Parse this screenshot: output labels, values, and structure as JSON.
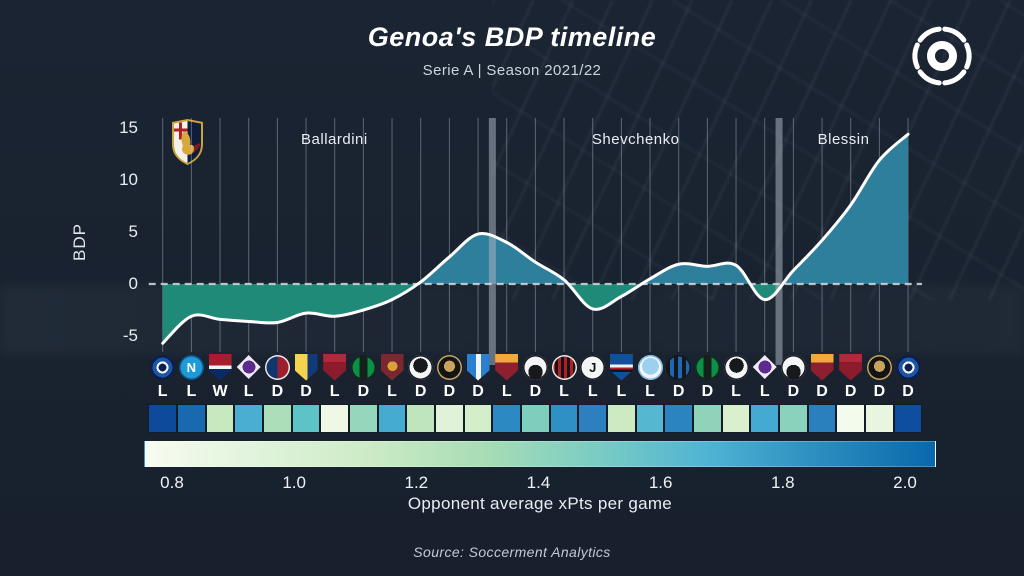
{
  "header": {
    "title": "Genoa's BDP timeline",
    "subtitle": "Serie A | Season 2021/22"
  },
  "footer": {
    "source": "Source: Soccerment Analytics"
  },
  "icons": {
    "soccerment_logo": "soccerment-ball-logo",
    "genoa_crest": "genoa-club-crest"
  },
  "chart_data": {
    "type": "area",
    "title": "Genoa's BDP timeline",
    "subtitle": "Serie A | Season 2021/22",
    "ylabel": "BDP",
    "yticks": [
      15,
      10,
      5,
      0,
      -5
    ],
    "ylim": [
      -6.5,
      16
    ],
    "zero_baseline": 0,
    "grid": "vertical-per-match",
    "matches": [
      {
        "opponent": "Inter",
        "team": "inter",
        "result": "L",
        "bdp": -5.7,
        "xpts_color": "#0d4a9c"
      },
      {
        "opponent": "Napoli",
        "team": "napoli",
        "result": "L",
        "bdp": -3.1,
        "xpts_color": "#1969b0"
      },
      {
        "opponent": "Cagliari",
        "team": "cagliari",
        "result": "W",
        "bdp": -3.4,
        "xpts_color": "#c7e9c0"
      },
      {
        "opponent": "Fiorentina",
        "team": "fiorentina",
        "result": "L",
        "bdp": -3.6,
        "xpts_color": "#4aadd2"
      },
      {
        "opponent": "Bologna",
        "team": "bologna",
        "result": "D",
        "bdp": -3.7,
        "xpts_color": "#aadfb9"
      },
      {
        "opponent": "Verona",
        "team": "verona",
        "result": "D",
        "bdp": -2.8,
        "xpts_color": "#5ec3c6"
      },
      {
        "opponent": "Salernitana",
        "team": "salernitana",
        "result": "L",
        "bdp": -3.1,
        "xpts_color": "#eef8e4"
      },
      {
        "opponent": "Sassuolo",
        "team": "sassuolo",
        "result": "D",
        "bdp": -2.5,
        "xpts_color": "#95d6bd"
      },
      {
        "opponent": "Torino",
        "team": "torino",
        "result": "L",
        "bdp": -1.5,
        "xpts_color": "#46abd1"
      },
      {
        "opponent": "Spezia",
        "team": "spezia",
        "result": "D",
        "bdp": 0.2,
        "xpts_color": "#bfe5bd"
      },
      {
        "opponent": "Venezia",
        "team": "venezia",
        "result": "D",
        "bdp": 2.6,
        "xpts_color": "#e0f3d8"
      },
      {
        "opponent": "Empoli",
        "team": "empoli",
        "result": "D",
        "bdp": 4.8,
        "xpts_color": "#d4eeca"
      },
      {
        "opponent": "Roma",
        "team": "roma",
        "result": "L",
        "bdp": 4.0,
        "xpts_color": "#2d89c2"
      },
      {
        "opponent": "Udinese",
        "team": "udinese",
        "result": "D",
        "bdp": 2.1,
        "xpts_color": "#7fcdbb"
      },
      {
        "opponent": "Milan",
        "team": "milan",
        "result": "L",
        "bdp": 0.4,
        "xpts_color": "#2f90c5"
      },
      {
        "opponent": "Juventus",
        "team": "juventus",
        "result": "L",
        "bdp": -2.4,
        "xpts_color": "#2b80bd"
      },
      {
        "opponent": "Sampdoria",
        "team": "sampdoria",
        "result": "L",
        "bdp": -1.2,
        "xpts_color": "#cdebc3"
      },
      {
        "opponent": "Lazio",
        "team": "lazio",
        "result": "L",
        "bdp": 0.5,
        "xpts_color": "#55b7d0"
      },
      {
        "opponent": "Atalanta",
        "team": "atalanta",
        "result": "D",
        "bdp": 1.9,
        "xpts_color": "#2b84c0"
      },
      {
        "opponent": "Sassuolo",
        "team": "sassuolo",
        "result": "D",
        "bdp": 1.7,
        "xpts_color": "#90d3bb"
      },
      {
        "opponent": "Spezia",
        "team": "spezia",
        "result": "L",
        "bdp": 1.8,
        "xpts_color": "#daf0cd"
      },
      {
        "opponent": "Fiorentina",
        "team": "fiorentina",
        "result": "L",
        "bdp": -1.5,
        "xpts_color": "#45aad2"
      },
      {
        "opponent": "Udinese",
        "team": "udinese",
        "result": "D",
        "bdp": 1.3,
        "xpts_color": "#8bd2bd"
      },
      {
        "opponent": "Roma",
        "team": "roma",
        "result": "D",
        "bdp": 4.2,
        "xpts_color": "#2a80bd"
      },
      {
        "opponent": "Salernitana",
        "team": "salernitana",
        "result": "D",
        "bdp": 7.6,
        "xpts_color": "#f3fbec"
      },
      {
        "opponent": "Venezia",
        "team": "venezia",
        "result": "D",
        "bdp": 11.9,
        "xpts_color": "#e8f6e0"
      },
      {
        "opponent": "Inter",
        "team": "inter",
        "result": "D",
        "bdp": 14.4,
        "xpts_color": "#0f4e9e"
      }
    ],
    "managers": [
      {
        "name": "Ballardini",
        "from_match": 1
      },
      {
        "name": "Shevchenko",
        "from_match": 13
      },
      {
        "name": "Blessin",
        "from_match": 23
      }
    ],
    "colorbar": {
      "label": "Opponent average xPts per game",
      "ticks": [
        "0.8",
        "1.0",
        "1.2",
        "1.4",
        "1.6",
        "1.8",
        "2.0"
      ],
      "gradient": [
        "#f7fcf0",
        "#e0f3db",
        "#ccebc5",
        "#a8ddb5",
        "#7bccc4",
        "#4eb3d3",
        "#2b8cbe",
        "#0868ac"
      ]
    },
    "colors": {
      "positive_fill": "#2e7f9b",
      "negative_fill": "#1f8a77",
      "line": "#ffffff",
      "grid": "rgba(202,212,224,0.38)",
      "manager_bar": "rgba(168,179,192,0.55)",
      "zero_dash": "rgba(210,218,224,0.85)",
      "background": "#1a2330"
    }
  },
  "teams": {
    "inter": {
      "shape": "circle",
      "bg": "radial-gradient(circle at 50% 50%, #0e1f4b 0 22%, #f5f7fa 22% 34%, #1b57a8 34% 56%, #0e1f4b 56% 100%)",
      "border": "#0e1f4b"
    },
    "napoli": {
      "shape": "circle",
      "bg": "radial-gradient(circle at 50% 50%, #1e9ad6 0 70%, #0d4f86 70% 100%)",
      "glyph": "N",
      "glyph_color": "#ffffff",
      "border": "#0d4f86"
    },
    "cagliari": {
      "shape": "shield",
      "bg": "linear-gradient(180deg, #a81c2e 0 42%, #f2f2f2 42% 56%, #0a2a66 56% 100%)"
    },
    "fiorentina": {
      "shape": "diamond",
      "bg": "radial-gradient(circle at 50% 50%, #5d2a8e 0 38%, #f0eaf7 38% 100%)"
    },
    "bologna": {
      "shape": "circle",
      "bg": "linear-gradient(90deg, #12356e 0 50%, #9c1f2e 50% 100%)",
      "border": "#e8e8e8"
    },
    "verona": {
      "shape": "shield",
      "bg": "linear-gradient(90deg, #f5d34a 0 55%, #123a7a 55% 100%)"
    },
    "salernitana": {
      "shape": "shield",
      "bg": "linear-gradient(180deg, #b02a3c 0 30%, #8c1c2b 30% 100%)"
    },
    "sassuolo": {
      "shape": "circle",
      "bg": "linear-gradient(90deg, #0a9147 0 34%, #15221b 34% 66%, #0a9147 66% 100%)",
      "border": "#15221b"
    },
    "torino": {
      "shape": "shield",
      "bg": "radial-gradient(circle at 50% 45%, #d8a13a 0 26%, #7a2730 26% 100%)"
    },
    "spezia": {
      "shape": "circle",
      "bg": "radial-gradient(circle at 50% 42%, #17191c 0 38%, #f4f5f6 38% 100%)",
      "border": "#17191c"
    },
    "venezia": {
      "shape": "circle",
      "bg": "radial-gradient(circle at 50% 45%, #c9a45c 0 30%, #121416 30% 100%)",
      "border": "#c9a45c"
    },
    "empoli": {
      "shape": "shield",
      "bg": "linear-gradient(90deg, #2a7fd0 0 40%, #f2f6fa 40% 60%, #2a7fd0 60% 100%)"
    },
    "roma": {
      "shape": "shield",
      "bg": "linear-gradient(180deg, #f0a93b 0 32%, #8e1f2f 32% 100%)"
    },
    "udinese": {
      "shape": "circle",
      "bg": "radial-gradient(circle at 50% 68%, #17191b 0 34%, #f4f5f6 34% 100%)",
      "border": "#17191b"
    },
    "milan": {
      "shape": "circle",
      "bg": "repeating-linear-gradient(90deg, #b01e28 0 3px, #141414 3px 6px)",
      "border": "#e8e8e8"
    },
    "juventus": {
      "shape": "circle",
      "bg": "#f4f5f6",
      "glyph": "J",
      "glyph_color": "#141414",
      "border": "#141414"
    },
    "sampdoria": {
      "shape": "shield",
      "bg": "linear-gradient(180deg, #10519e 0 38%, #f2f2f2 38% 50%, #b01e28 50% 58%, #141414 58% 66%, #10519e 66% 100%)"
    },
    "lazio": {
      "shape": "circle",
      "bg": "radial-gradient(circle at 50% 45%, #9cd0ee 0 45%, #eef6fc 45% 100%)",
      "border": "#7fb8dc"
    },
    "atalanta": {
      "shape": "circle",
      "bg": "repeating-linear-gradient(90deg, #15171a 0 4px, #1d67b5 4px 8px)",
      "border": "#15171a"
    }
  }
}
